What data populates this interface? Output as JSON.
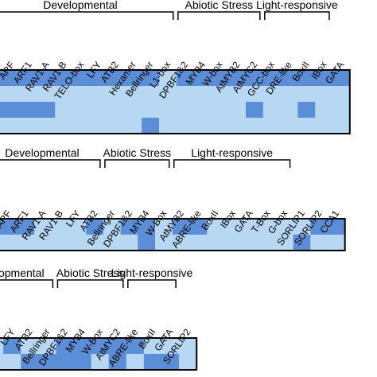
{
  "chart_data": [
    {
      "type": "heatmap",
      "groups": [
        {
          "label": "Developmental",
          "from": 0,
          "to": 10
        },
        {
          "label": "Abiotic Stress",
          "from": 11,
          "to": 15
        },
        {
          "label": "Light-responsive",
          "from": 16,
          "to": 19
        }
      ],
      "columns": [
        "MYB",
        "ARF",
        "ARF1",
        "RAV1-A",
        "RAV1-B",
        "TELO-box",
        "LFY",
        "ATB2",
        "Hexamer",
        "Bellringer",
        "L1-box",
        "DPBF1&2",
        "MYB4",
        "W-box",
        "AtMYB2",
        "AtMYC2",
        "GCC-box",
        "DRE-like",
        "BoxII",
        "IBox",
        "GATA"
      ],
      "rows": 4,
      "matrix": [
        [
          1,
          1,
          1,
          1,
          1,
          1,
          1,
          1,
          1,
          1,
          0,
          1,
          1,
          1,
          1,
          1,
          1,
          1,
          1,
          1,
          1
        ],
        [
          0,
          0,
          0,
          0,
          0,
          0,
          0,
          0,
          0,
          0,
          0,
          0,
          0,
          0,
          0,
          0,
          0,
          0,
          0,
          0,
          0
        ],
        [
          1,
          1,
          1,
          1,
          0,
          0,
          0,
          0,
          0,
          0,
          0,
          0,
          0,
          0,
          0,
          1,
          0,
          0,
          1,
          0,
          0
        ],
        [
          0,
          0,
          0,
          0,
          0,
          0,
          0,
          0,
          0,
          1,
          0,
          0,
          0,
          0,
          0,
          0,
          0,
          0,
          0,
          0,
          0
        ]
      ],
      "colors": {
        "present": "#5b8ed6",
        "absent": "#b7d7f2"
      }
    },
    {
      "type": "heatmap",
      "groups": [
        {
          "label": "Developmental",
          "from": 0,
          "to": 6
        },
        {
          "label": "Abiotic Stress",
          "from": 7,
          "to": 10
        },
        {
          "label": "Light-responsive",
          "from": 11,
          "to": 17
        }
      ],
      "columns": [
        "MYB",
        "ARF",
        "ARF1",
        "RAV1-A",
        "RAV1-B",
        "LFY",
        "ATB2",
        "Bellringer",
        "DPBF1&2",
        "MYB4",
        "W-Box",
        "AtMYB2",
        "ABRE-like",
        "BoxII",
        "IBox",
        "GATA",
        "T-Box",
        "G-box",
        "SORLIP1",
        "SORLIP2",
        "CCA1"
      ],
      "rows": 2,
      "matrix": [
        [
          1,
          1,
          1,
          0,
          0,
          0,
          1,
          0,
          1,
          1,
          0,
          1,
          1,
          0,
          0,
          0,
          0,
          0,
          0,
          1,
          1
        ],
        [
          0,
          0,
          0,
          0,
          0,
          0,
          0,
          0,
          0,
          1,
          0,
          0,
          0,
          0,
          0,
          0,
          0,
          0,
          1,
          0,
          0
        ]
      ],
      "colors": {
        "present": "#5b8ed6",
        "absent": "#b7d7f2"
      }
    },
    {
      "type": "heatmap",
      "groups": [
        {
          "label": "lopmental",
          "from": 0,
          "to": 3
        },
        {
          "label": "Abiotic Stress",
          "from": 4,
          "to": 7
        },
        {
          "label": "Light-responsive",
          "from": 8,
          "to": 10
        }
      ],
      "columns": [
        "RAV1-A",
        "LFY",
        "ATB2",
        "Bellringer",
        "DPBF1&2",
        "MYB4",
        "W-Box",
        "AtMYC2",
        "ABRE-like",
        "BoxII",
        "GATA",
        "SORLIP2"
      ],
      "rows": 2,
      "matrix": [
        [
          0,
          1,
          0,
          0,
          1,
          1,
          1,
          1,
          1,
          0,
          0,
          0
        ],
        [
          0,
          0,
          1,
          1,
          1,
          1,
          0,
          1,
          0,
          1,
          1,
          0
        ]
      ],
      "colors": {
        "present": "#5b8ed6",
        "absent": "#b7d7f2"
      }
    }
  ]
}
